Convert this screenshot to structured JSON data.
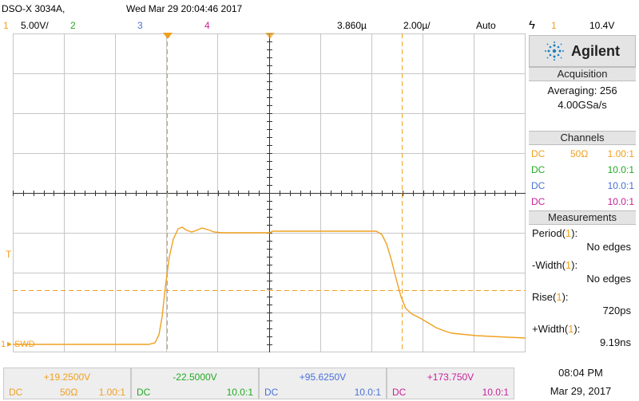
{
  "header": {
    "model": "DSO-X 3034A,",
    "datetime": "Wed Mar 29 20:04:46 2017",
    "ch1_num": "1",
    "ch1_scale": "5.00V/",
    "ch2_num": "2",
    "ch3_num": "3",
    "ch4_num": "4",
    "delay": "3.860µ",
    "timebase": "2.00µ/",
    "trigger_mode": "Auto",
    "trigger_icon": "trigger-edge-icon",
    "trigger_channel": "1",
    "trigger_level": "10.4V"
  },
  "colors": {
    "ch1": "#f0a020",
    "ch2": "#22aa22",
    "ch3": "#4a70d8",
    "ch4": "#c8209a",
    "grid": "#c8c8c8",
    "accent": "#1a7fc0"
  },
  "markers": {
    "ground_label": "SWD",
    "ground_channel": "1",
    "trigger_marker": "T"
  },
  "sidebar": {
    "brand": "Agilent",
    "acquisition_title": "Acquisition",
    "averaging": "Averaging: 256",
    "sample_rate": "4.00GSa/s",
    "channels_title": "Channels",
    "channels": [
      {
        "coupling": "DC",
        "impedance": "50Ω",
        "probe": "1.00:1"
      },
      {
        "coupling": "DC",
        "impedance": "",
        "probe": "10.0:1"
      },
      {
        "coupling": "DC",
        "impedance": "",
        "probe": "10.0:1"
      },
      {
        "coupling": "DC",
        "impedance": "",
        "probe": "10.0:1"
      }
    ],
    "measurements_title": "Measurements",
    "measurements": [
      {
        "name": "Period",
        "src": "1",
        "value": "No edges"
      },
      {
        "name": "-Width",
        "src": "1",
        "value": "No edges"
      },
      {
        "name": "Rise",
        "src": "1",
        "value": "720ps"
      },
      {
        "name": "+Width",
        "src": "1",
        "value": "9.19ns"
      }
    ]
  },
  "footer": {
    "channels": [
      {
        "offset": "+19.2500V",
        "coupling": "DC",
        "impedance": "50Ω",
        "probe": "1.00:1"
      },
      {
        "offset": "-22.5000V",
        "coupling": "DC",
        "impedance": "",
        "probe": "10.0:1"
      },
      {
        "offset": "+95.6250V",
        "coupling": "DC",
        "impedance": "",
        "probe": "10.0:1"
      },
      {
        "offset": "+173.750V",
        "coupling": "DC",
        "impedance": "",
        "probe": "10.0:1"
      }
    ],
    "time": "08:04 PM",
    "date": "Mar 29, 2017"
  }
}
